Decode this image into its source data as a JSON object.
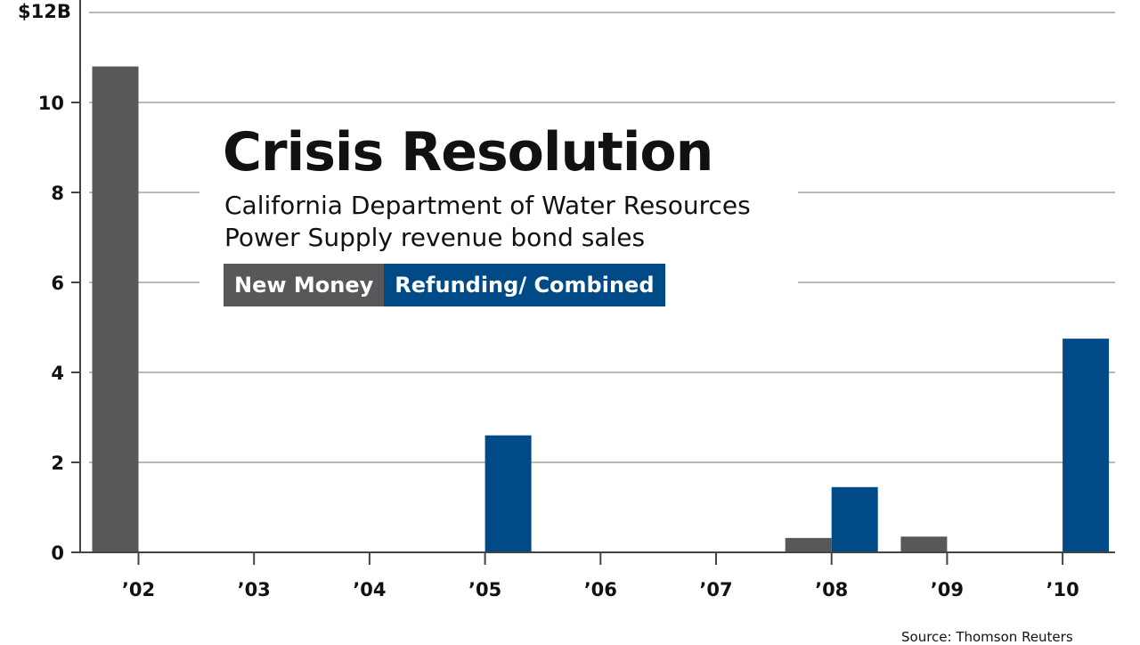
{
  "chart_data": {
    "type": "bar",
    "title": "Crisis Resolution",
    "subtitle_lines": [
      "California Department of Water Resources",
      "Power Supply revenue bond sales"
    ],
    "ylabel": "$12B",
    "ylim": [
      0,
      12
    ],
    "yticks": [
      "0",
      "2",
      "4",
      "6",
      "8",
      "10"
    ],
    "ytick_values": [
      0,
      2,
      4,
      6,
      8,
      10
    ],
    "categories": [
      "'02",
      "'03",
      "'04",
      "'05",
      "'06",
      "'07",
      "'08",
      "'09",
      "'10"
    ],
    "series": [
      {
        "name": "New Money",
        "color": "#58585a",
        "values": [
          10.8,
          0,
          0,
          0,
          0,
          0,
          0.32,
          0.35,
          0
        ]
      },
      {
        "name": "Refunding/ Combined",
        "color": "#004b87",
        "values": [
          0,
          0,
          0,
          2.6,
          0,
          0,
          1.45,
          0,
          4.75
        ]
      }
    ],
    "grid": true,
    "legend": "top-left",
    "source": "Source: Thomson Reuters"
  }
}
